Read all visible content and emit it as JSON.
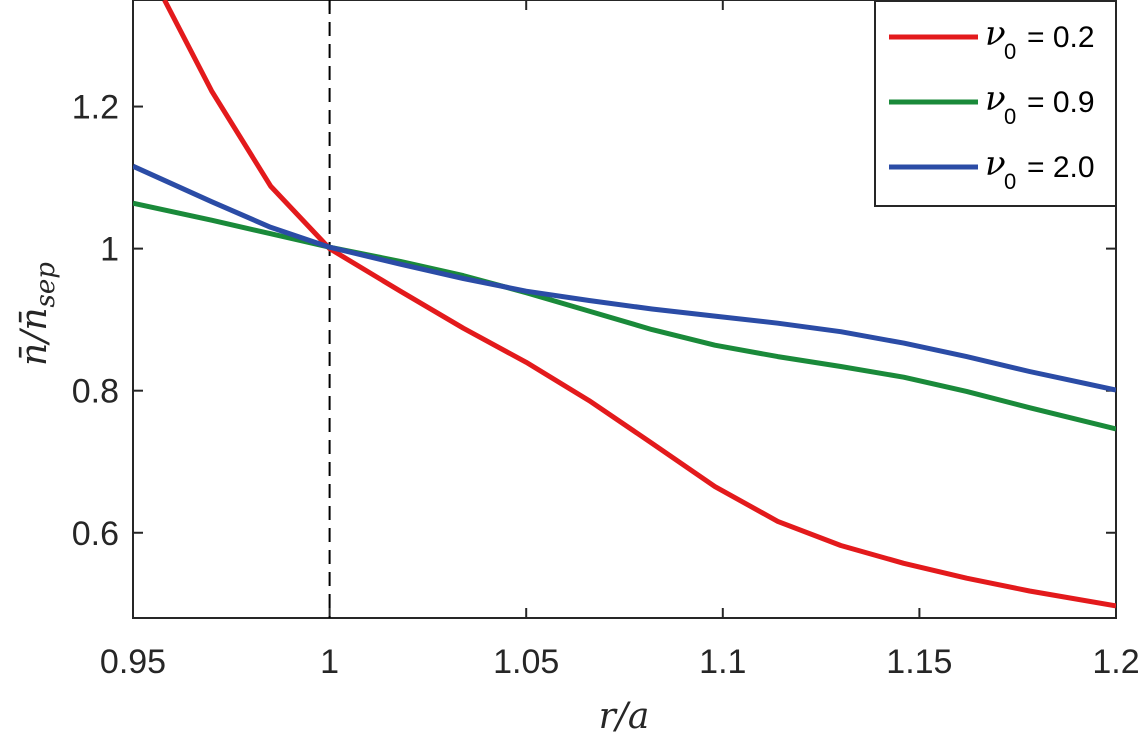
{
  "chart_data": {
    "type": "line",
    "title": "",
    "xlabel": "r/a",
    "ylabel": "n̄/n̄sep",
    "xlim": [
      0.95,
      1.2
    ],
    "ylim": [
      0.48,
      1.35
    ],
    "xticks": [
      0.95,
      1.0,
      1.05,
      1.1,
      1.15,
      1.2
    ],
    "xtick_labels": [
      "0.95",
      "1",
      "1.05",
      "1.1",
      "1.15",
      "1.2"
    ],
    "yticks": [
      0.6,
      0.8,
      1.0,
      1.2
    ],
    "ytick_labels": [
      "0.6",
      "0.8",
      "1",
      "1.2"
    ],
    "grid": false,
    "legend_position": "top-right",
    "reference_line": {
      "x": 1.0,
      "style": "dashed",
      "color": "#000000"
    },
    "series": [
      {
        "name": "ν0 = 0.2",
        "legend_symbol": "ν",
        "legend_subscript": "0",
        "legend_value": "= 0.2",
        "color": "#e31a1c",
        "x": [
          0.958,
          0.97,
          0.985,
          1.0,
          1.018,
          1.034,
          1.05,
          1.066,
          1.082,
          1.098,
          1.114,
          1.13,
          1.146,
          1.162,
          1.178,
          1.2
        ],
        "y": [
          1.35,
          1.222,
          1.088,
          1.0,
          0.94,
          0.888,
          0.84,
          0.786,
          0.726,
          0.665,
          0.616,
          0.582,
          0.557,
          0.536,
          0.518,
          0.497
        ]
      },
      {
        "name": "ν0 = 0.9",
        "legend_symbol": "ν",
        "legend_subscript": "0",
        "legend_value": "= 0.9",
        "color": "#1a8a3a",
        "x": [
          0.95,
          0.97,
          0.985,
          1.0,
          1.018,
          1.034,
          1.05,
          1.066,
          1.082,
          1.098,
          1.114,
          1.13,
          1.146,
          1.162,
          1.178,
          1.2
        ],
        "y": [
          1.064,
          1.04,
          1.021,
          1.002,
          0.982,
          0.962,
          0.938,
          0.912,
          0.886,
          0.864,
          0.848,
          0.834,
          0.819,
          0.799,
          0.776,
          0.746
        ]
      },
      {
        "name": "ν0 = 2.0",
        "legend_symbol": "ν",
        "legend_subscript": "0",
        "legend_value": "= 2.0",
        "color": "#2b4ca6",
        "x": [
          0.95,
          0.97,
          0.985,
          1.0,
          1.018,
          1.034,
          1.05,
          1.066,
          1.082,
          1.098,
          1.114,
          1.13,
          1.146,
          1.162,
          1.178,
          1.2
        ],
        "y": [
          1.116,
          1.066,
          1.03,
          1.002,
          0.978,
          0.958,
          0.94,
          0.927,
          0.915,
          0.905,
          0.895,
          0.883,
          0.867,
          0.848,
          0.827,
          0.801
        ]
      }
    ]
  }
}
